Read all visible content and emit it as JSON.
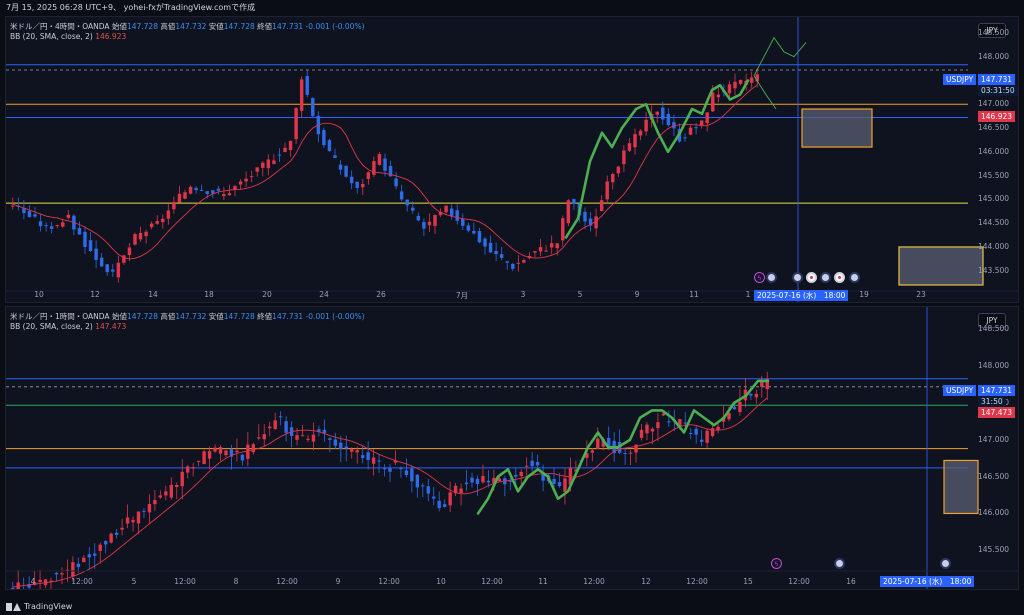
{
  "header": {
    "title_line": "7月 15, 2025 06:28 UTC+9、 yohei-fxがTradingView.comで作成"
  },
  "footer": {
    "brand": "TradingView"
  },
  "colors": {
    "bull": "#e0364a",
    "bear": "#2e6be6",
    "bb": "#e0364a",
    "wave": "#4caf50",
    "orange": "#f0a030",
    "yellow": "#e8e040",
    "blue_line": "#2962ff",
    "box": "#5a6072"
  },
  "panes": [
    {
      "id": "top",
      "legend": {
        "symbol": "米ドル／円・4時間・OANDA",
        "open_label": "始値",
        "open": "147.728",
        "high_label": "高値",
        "high": "147.732",
        "low_label": "安値",
        "low": "147.728",
        "close_label": "終値",
        "close": "147.731",
        "change": "-0.001 (-0.00%)",
        "bb_label": "BB (20, SMA, close, 2)",
        "bb_value": "146.923"
      },
      "currency": "JPY",
      "price_ticks": [
        "148.500",
        "148.000",
        "147.500",
        "147.000",
        "146.500",
        "146.000",
        "145.500",
        "145.000",
        "144.500",
        "144.000",
        "143.500"
      ],
      "price_min": 143.2,
      "price_max": 148.75,
      "symbol_tag": "USDJPY",
      "last_price": "147.731",
      "countdown": "03:31:50",
      "bb_tag": "146.923",
      "date_ticks": [
        "10",
        "12",
        "14",
        "18",
        "20",
        "24",
        "26",
        "7月",
        "3",
        "5",
        "9",
        "11",
        "1",
        "19",
        "23"
      ],
      "crosshair_date": "2025-07-16 (水)　18:00",
      "hlines": [
        {
          "price": 147.83,
          "color": "blue"
        },
        {
          "price": 147.72,
          "color": "dash"
        },
        {
          "price": 147.0,
          "color": "orange"
        },
        {
          "price": 146.72,
          "color": "blue"
        },
        {
          "price": 144.92,
          "color": "yellow"
        }
      ],
      "events": [
        "storm",
        "us",
        "us",
        "jp",
        "us",
        "jp",
        "us"
      ]
    },
    {
      "id": "bottom",
      "legend": {
        "symbol": "米ドル／円・1時間・OANDA",
        "open_label": "始値",
        "open": "147.728",
        "high_label": "高値",
        "high": "147.732",
        "low_label": "安値",
        "low": "147.728",
        "close_label": "終値",
        "close": "147.731",
        "change": "-0.001 (-0.00%)",
        "bb_label": "BB (20, SMA, close, 2)",
        "bb_value": "147.473"
      },
      "currency": "JPY",
      "price_ticks": [
        "148.500",
        "148.000",
        "147.500",
        "147.000",
        "146.500",
        "146.000",
        "145.500"
      ],
      "price_min": 145.3,
      "price_max": 148.75,
      "symbol_tag": "USDJPY",
      "last_price": "147.731",
      "countdown": "31:50",
      "bb_tag": "147.473",
      "date_ticks": [
        "4",
        "12:00",
        "5",
        "12:00",
        "8",
        "12:00",
        "9",
        "12:00",
        "10",
        "12:00",
        "11",
        "12:00",
        "12",
        "12:00",
        "15",
        "12:00",
        "16"
      ],
      "crosshair_date": "2025-07-16 (水)　18:00",
      "hlines": [
        {
          "price": 147.83,
          "color": "blue"
        },
        {
          "price": 147.72,
          "color": "dash"
        },
        {
          "price": 147.47,
          "color": "green"
        },
        {
          "price": 146.88,
          "color": "orange"
        },
        {
          "price": 146.62,
          "color": "blue"
        }
      ],
      "events": [
        "storm",
        "us",
        "us"
      ]
    }
  ]
}
